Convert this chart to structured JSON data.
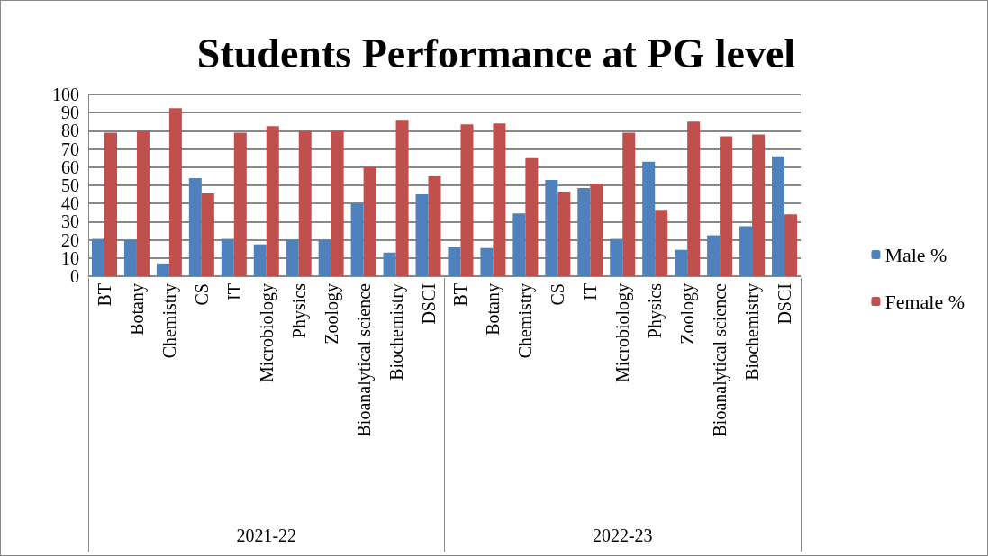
{
  "chart_data": {
    "type": "bar",
    "title": "Students Performance at PG level",
    "categories": [
      "BT",
      "Botany",
      "Chemistry",
      "CS",
      "IT",
      "Microbiology",
      "Physics",
      "Zoology",
      "Bioanalytical science",
      "Biochemistry",
      "DSCI",
      "BT",
      "Botany",
      "Chemistry",
      "CS",
      "IT",
      "Microbiology",
      "Physics",
      "Zoology",
      "Bioanalytical science",
      "Biochemistry",
      "DSCI"
    ],
    "series": [
      {
        "name": "Male %",
        "color": "#4f81bd",
        "values": [
          20.5,
          20,
          7,
          54,
          20.5,
          17.5,
          20,
          20,
          40,
          13,
          45,
          16,
          15.5,
          34.5,
          53,
          48.5,
          20.5,
          63,
          14.5,
          22.5,
          27.5,
          66
        ]
      },
      {
        "name": "Female %",
        "color": "#c0504d",
        "values": [
          79,
          80,
          92.5,
          45.5,
          79,
          82.5,
          80,
          80,
          60,
          86,
          55,
          83.5,
          84,
          65,
          46.5,
          51,
          79,
          36.5,
          85,
          77,
          78,
          34
        ]
      }
    ],
    "annotations": [
      "2021-22",
      "2022-23"
    ],
    "ylim": [
      0,
      100
    ],
    "yticks": [
      0,
      10,
      20,
      30,
      40,
      50,
      60,
      70,
      80,
      90,
      100
    ],
    "grid": "y",
    "legend": "right"
  }
}
